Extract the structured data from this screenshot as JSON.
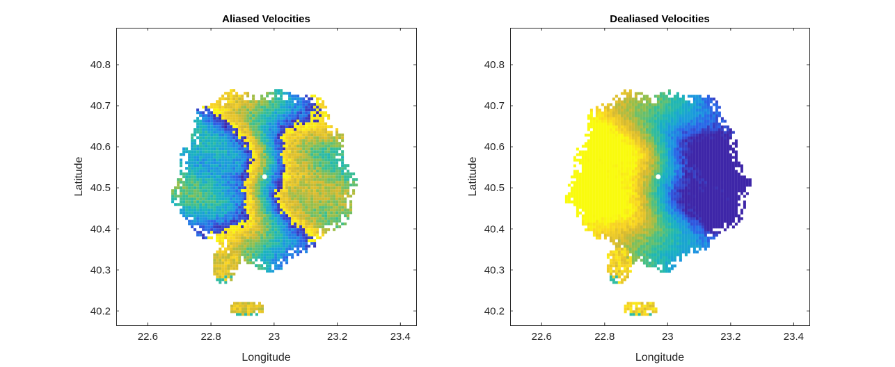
{
  "chart_data": [
    {
      "type": "heatmap",
      "title": "Aliased Velocities",
      "xlabel": "Longitude",
      "ylabel": "Latitude",
      "xlim": [
        22.5,
        23.45
      ],
      "ylim": [
        40.165,
        40.89
      ],
      "xticks": [
        22.6,
        22.8,
        23,
        23.2,
        23.4
      ],
      "xtick_labels": [
        "22.6",
        "22.8",
        "23",
        "23.2",
        "23.4"
      ],
      "yticks": [
        40.2,
        40.3,
        40.4,
        40.5,
        40.6,
        40.7,
        40.8
      ],
      "ytick_labels": [
        "40.2",
        "40.3",
        "40.4",
        "40.5",
        "40.6",
        "40.7",
        "40.8"
      ],
      "grid": false,
      "radar_site": {
        "lon": 22.97,
        "lat": 40.527
      },
      "scan_radius_deg_lon": 0.3,
      "colormap": [
        "#3e26a8",
        "#2c62e8",
        "#1c98e0",
        "#1ab4bd",
        "#3dbf8f",
        "#8ebf4f",
        "#d6b930",
        "#f9d423",
        "#f9fb0e"
      ],
      "rendering": "aliased",
      "echo_patches": [
        {
          "lon": 22.84,
          "lat": 40.315
        },
        {
          "lon": 22.91,
          "lat": 40.21
        }
      ]
    },
    {
      "type": "heatmap",
      "title": "Dealiased Velocities",
      "xlabel": "Longitude",
      "ylabel": "Latitude",
      "xlim": [
        22.5,
        23.45
      ],
      "ylim": [
        40.165,
        40.89
      ],
      "xticks": [
        22.6,
        22.8,
        23,
        23.2,
        23.4
      ],
      "xtick_labels": [
        "22.6",
        "22.8",
        "23",
        "23.2",
        "23.4"
      ],
      "yticks": [
        40.2,
        40.3,
        40.4,
        40.5,
        40.6,
        40.7,
        40.8
      ],
      "ytick_labels": [
        "40.2",
        "40.3",
        "40.4",
        "40.5",
        "40.6",
        "40.7",
        "40.8"
      ],
      "grid": false,
      "radar_site": {
        "lon": 22.97,
        "lat": 40.527
      },
      "scan_radius_deg_lon": 0.3,
      "colormap": [
        "#3e26a8",
        "#2c62e8",
        "#1c98e0",
        "#1ab4bd",
        "#3dbf8f",
        "#8ebf4f",
        "#d6b930",
        "#f9d423",
        "#f9fb0e"
      ],
      "rendering": "dealiased",
      "echo_patches": [
        {
          "lon": 22.84,
          "lat": 40.315
        },
        {
          "lon": 22.91,
          "lat": 40.21
        }
      ]
    }
  ]
}
